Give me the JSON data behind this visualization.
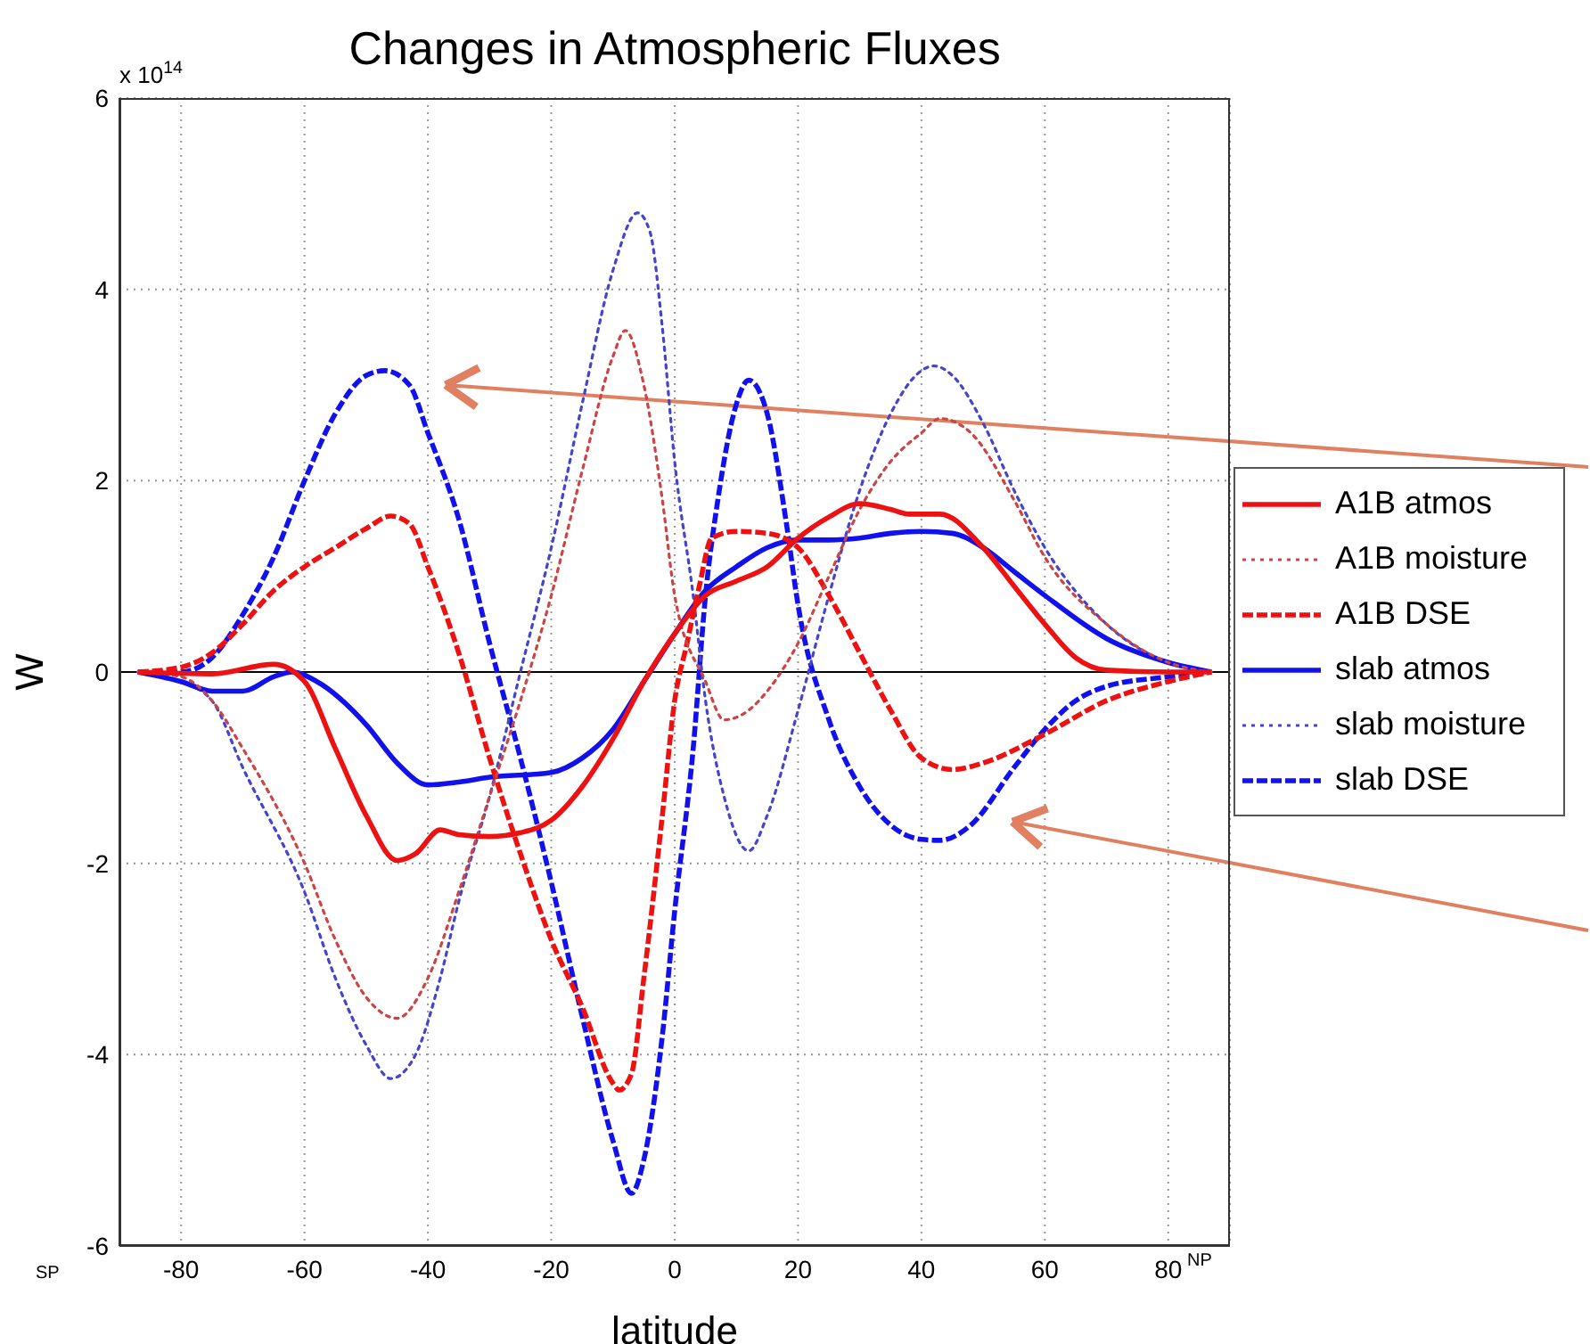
{
  "chart_data": {
    "type": "line",
    "title": "Changes in Atmospheric Fluxes",
    "xlabel": "latitude",
    "ylabel": "W",
    "annotations": [
      "x 10$^{14}$",
      "SP",
      "NP"
    ],
    "xlim": [
      -90,
      90
    ],
    "xticks": [
      -80,
      -60,
      -40,
      -20,
      0,
      20,
      40,
      60,
      80
    ],
    "ylim": [
      -6,
      6
    ],
    "yticks": [
      -6,
      -4,
      -2,
      0,
      2,
      4,
      6
    ],
    "grid": true,
    "legend": "right",
    "marker": "none",
    "ref_lines": [
      {
        "axis": "y",
        "value": 0,
        "color": "#000000",
        "line_style": "solid"
      }
    ],
    "series": [
      {
        "name": "A1B atmos",
        "color": "#ee1111",
        "line_style": "solid",
        "x": [
          -87,
          -75,
          -65,
          -60,
          -55,
          -50,
          -45,
          -42,
          -38,
          -35,
          -30,
          -25,
          -20,
          -15,
          -10,
          -5,
          0,
          5,
          10,
          15,
          20,
          25,
          30,
          35,
          38,
          43,
          50,
          55,
          60,
          65,
          70,
          80,
          87
        ],
        "values": [
          0,
          -0.02,
          0.08,
          -0.1,
          -0.8,
          -1.5,
          -1.97,
          -1.9,
          -1.65,
          -1.7,
          -1.72,
          -1.68,
          -1.55,
          -1.2,
          -0.7,
          -0.1,
          0.4,
          0.8,
          0.95,
          1.1,
          1.4,
          1.62,
          1.76,
          1.7,
          1.65,
          1.65,
          1.3,
          0.9,
          0.5,
          0.15,
          0.02,
          0,
          0
        ]
      },
      {
        "name": "A1B moisture",
        "color": "#cc4444",
        "line_style": "dotted",
        "x": [
          -87,
          -80,
          -75,
          -70,
          -60,
          -55,
          -50,
          -45,
          -40,
          -35,
          -30,
          -25,
          -20,
          -15,
          -10,
          -8,
          -5,
          -2,
          0,
          5,
          8,
          12,
          15,
          20,
          25,
          30,
          35,
          40,
          43,
          48,
          55,
          60,
          70,
          80,
          87
        ],
        "values": [
          0,
          -0.05,
          -0.3,
          -0.8,
          -2.0,
          -2.8,
          -3.4,
          -3.62,
          -3.2,
          -2.3,
          -1.3,
          -0.3,
          0.8,
          2.1,
          3.3,
          3.57,
          3.0,
          1.8,
          0.8,
          -0.1,
          -0.5,
          -0.4,
          -0.2,
          0.3,
          1.0,
          1.7,
          2.2,
          2.5,
          2.65,
          2.5,
          1.8,
          1.2,
          0.5,
          0.1,
          0
        ]
      },
      {
        "name": "A1B DSE",
        "color": "#ee1111",
        "line_style": "dashed",
        "x": [
          -87,
          -80,
          -75,
          -70,
          -65,
          -60,
          -55,
          -50,
          -46,
          -43,
          -40,
          -35,
          -30,
          -25,
          -20,
          -15,
          -10,
          -9,
          -7,
          -5,
          -2,
          0,
          2,
          4,
          6,
          10,
          15,
          20,
          25,
          30,
          35,
          40,
          45,
          50,
          60,
          70,
          80,
          87
        ],
        "values": [
          0,
          0.05,
          0.2,
          0.5,
          0.85,
          1.1,
          1.3,
          1.5,
          1.63,
          1.55,
          1.1,
          0.2,
          -0.9,
          -1.9,
          -2.8,
          -3.5,
          -4.3,
          -4.37,
          -4.2,
          -3.2,
          -1.5,
          -0.3,
          0.3,
          0.9,
          1.4,
          1.47,
          1.45,
          1.3,
          0.8,
          0.2,
          -0.4,
          -0.9,
          -1.02,
          -0.95,
          -0.65,
          -0.3,
          -0.1,
          0
        ]
      },
      {
        "name": "slab atmos",
        "color": "#1111ee",
        "line_style": "solid",
        "x": [
          -87,
          -80,
          -75,
          -70,
          -65,
          -62,
          -58,
          -50,
          -45,
          -40,
          -35,
          -30,
          -20,
          -15,
          -10,
          -5,
          0,
          5,
          10,
          15,
          20,
          25,
          30,
          35,
          40,
          45,
          50,
          55,
          60,
          70,
          80,
          87
        ],
        "values": [
          0,
          -0.1,
          -0.2,
          -0.2,
          -0.05,
          0,
          -0.1,
          -0.55,
          -0.95,
          -1.18,
          -1.15,
          -1.1,
          -1.05,
          -0.9,
          -0.6,
          -0.1,
          0.4,
          0.85,
          1.1,
          1.3,
          1.38,
          1.38,
          1.4,
          1.45,
          1.47,
          1.45,
          1.3,
          1.05,
          0.8,
          0.35,
          0.1,
          0
        ]
      },
      {
        "name": "slab moisture",
        "color": "#4444cc",
        "line_style": "dotted",
        "x": [
          -87,
          -80,
          -75,
          -70,
          -60,
          -55,
          -50,
          -46,
          -42,
          -38,
          -35,
          -30,
          -25,
          -20,
          -15,
          -10,
          -6,
          -4,
          -2,
          0,
          3,
          5,
          8,
          12,
          15,
          20,
          25,
          30,
          35,
          40,
          42,
          45,
          50,
          55,
          60,
          70,
          80,
          87
        ],
        "values": [
          0,
          -0.1,
          -0.3,
          -1.0,
          -2.3,
          -3.2,
          -3.9,
          -4.25,
          -4.0,
          -3.2,
          -2.4,
          -1.3,
          0,
          1.3,
          2.8,
          4.2,
          4.8,
          4.6,
          3.6,
          2.2,
          0.8,
          -0.3,
          -1.3,
          -1.87,
          -1.5,
          -0.4,
          0.8,
          1.9,
          2.7,
          3.15,
          3.2,
          3.1,
          2.6,
          1.9,
          1.3,
          0.5,
          0.1,
          0
        ]
      },
      {
        "name": "slab DSE",
        "color": "#1111ee",
        "line_style": "dashed",
        "x": [
          -87,
          -80,
          -75,
          -70,
          -65,
          -60,
          -55,
          -50,
          -47,
          -43,
          -40,
          -35,
          -30,
          -25,
          -20,
          -15,
          -10,
          -7,
          -5,
          -2,
          0,
          3,
          5,
          7,
          10,
          12,
          15,
          18,
          20,
          25,
          30,
          35,
          40,
          43,
          48,
          55,
          60,
          65,
          70,
          80,
          87
        ],
        "values": [
          0,
          0,
          0.15,
          0.6,
          1.2,
          2.0,
          2.7,
          3.1,
          3.15,
          3.0,
          2.5,
          1.6,
          0.3,
          -0.9,
          -2.2,
          -3.6,
          -4.9,
          -5.45,
          -5.1,
          -3.8,
          -2.5,
          -0.8,
          0.8,
          1.8,
          2.8,
          3.05,
          2.7,
          1.6,
          0.7,
          -0.5,
          -1.2,
          -1.6,
          -1.75,
          -1.76,
          -1.6,
          -1.0,
          -0.6,
          -0.3,
          -0.15,
          -0.05,
          0
        ]
      }
    ]
  }
}
